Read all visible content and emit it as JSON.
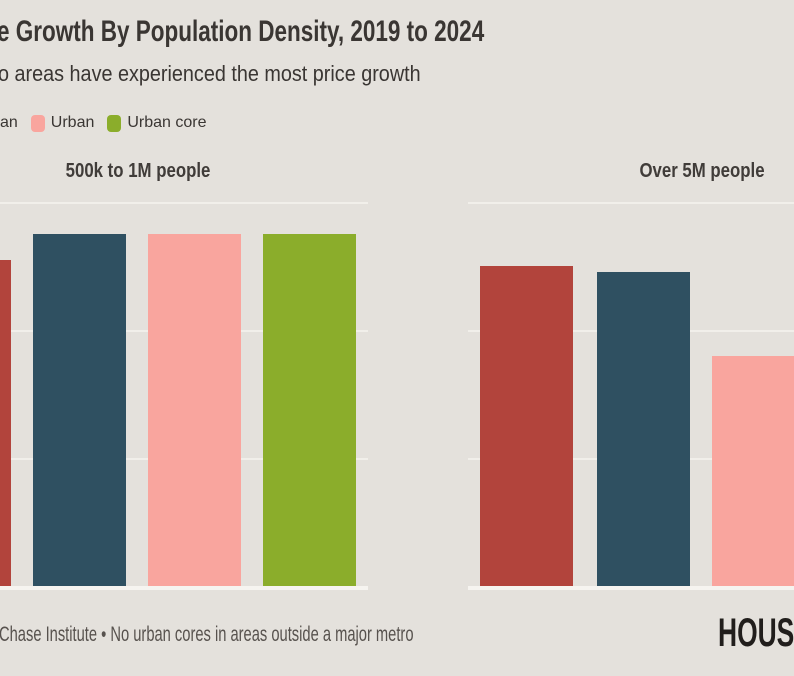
{
  "header": {
    "title": "e Growth By Population Density, 2019 to 2024",
    "subtitle": "o areas have experienced the most price growth"
  },
  "legend": {
    "items": [
      {
        "label": "an",
        "swatch_color": null,
        "note": "swatch cropped off left edge"
      },
      {
        "label": "Urban",
        "swatch_color": "#F9A59E"
      },
      {
        "label": "Urban core",
        "swatch_color": "#8BAD2B"
      }
    ]
  },
  "chart_data": [
    {
      "type": "bar",
      "title": "500k to 1M people",
      "categories": [
        "(label cut off)",
        "(label cut off, ends in \"an\")",
        "Urban",
        "Urban core"
      ],
      "values": [
        51,
        55,
        55,
        55
      ],
      "bar_colors": [
        "#B2443C",
        "#2F5061",
        "#F9A59E",
        "#8BAD2B"
      ],
      "xlabel": "",
      "ylabel": "",
      "ylim": [
        0,
        60
      ],
      "gridlines": [
        20,
        40,
        60
      ],
      "grid": "horizontal only, light lines on gray background",
      "units": "percent (estimated from gridline spacing; y-axis labels cropped out of frame)",
      "legend_position": "top-left above panels",
      "notes": "leftmost red bar partially cropped at left edge of screenshot"
    },
    {
      "type": "bar",
      "title": "Over 5M people",
      "categories": [
        "(label cut off)",
        "(label cut off, ends in \"an\")",
        "Urban"
      ],
      "values": [
        50,
        49,
        36
      ],
      "bar_colors": [
        "#B2443C",
        "#2F5061",
        "#F9A59E"
      ],
      "xlabel": "",
      "ylabel": "",
      "ylim": [
        0,
        60
      ],
      "gridlines": [
        20,
        40,
        60
      ],
      "grid": "horizontal only, light lines on gray background",
      "units": "percent (estimated from gridline spacing; y-axis labels cropped out of frame)",
      "notes": "rightmost pink bar partially cropped at right edge of screenshot"
    }
  ],
  "footer": {
    "note": "Chase Institute • No urban cores in areas outside a major metro",
    "logo_text": "HOUS"
  },
  "colors": {
    "background": "#E4E1DC",
    "gridline": "#F1EFEA",
    "baseline": "#F6F4F0",
    "text_dark": "#3A3633",
    "text_muted": "#57524E",
    "bar_red": "#B2443C",
    "bar_slate": "#2F5061",
    "bar_pink": "#F9A59E",
    "bar_green": "#8BAD2B"
  }
}
